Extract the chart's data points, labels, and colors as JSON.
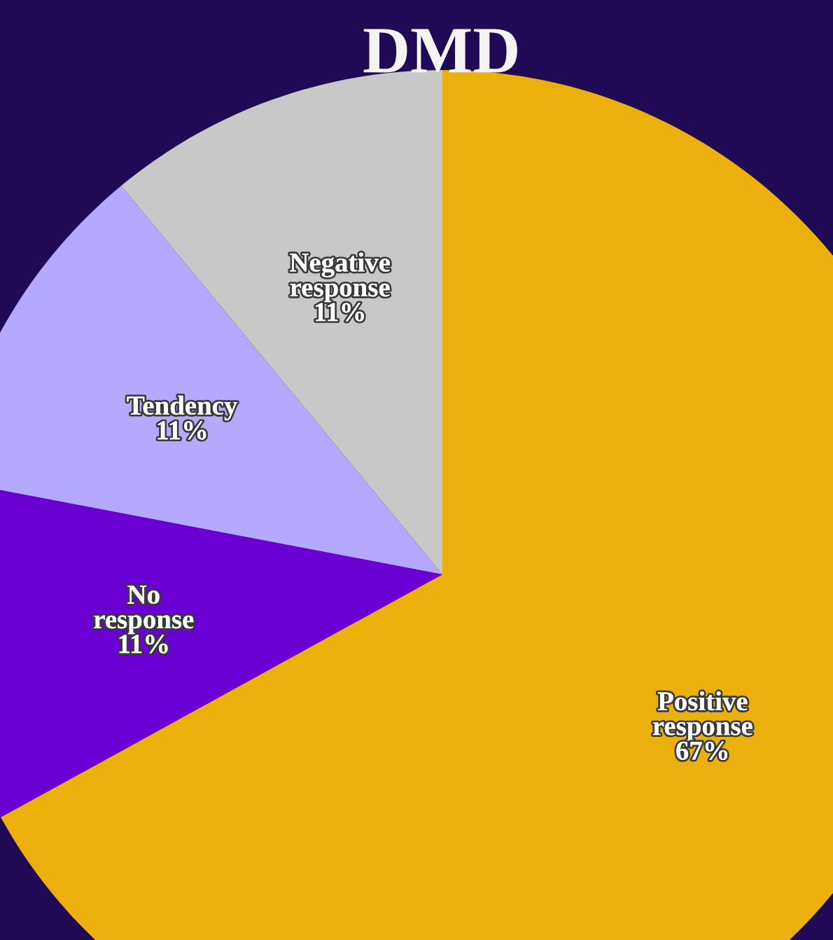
{
  "chart_data": {
    "type": "pie",
    "title": "DMD",
    "categories": [
      "Positive response",
      "No response",
      "Tendency",
      "Negative response"
    ],
    "values": [
      67,
      11,
      11,
      11
    ],
    "value_labels": [
      "67%",
      "11%",
      "11%",
      "11%"
    ],
    "colors": [
      "#ecb00c",
      "#6a00d4",
      "#b4a8ff",
      "#c8c8c8"
    ],
    "legend": false
  }
}
